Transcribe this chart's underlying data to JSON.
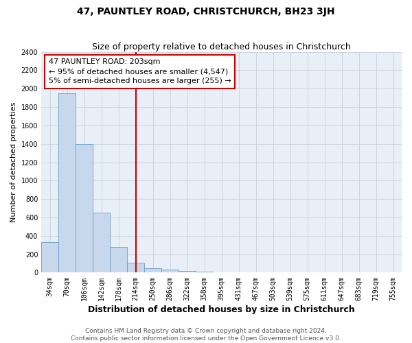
{
  "title": "47, PAUNTLEY ROAD, CHRISTCHURCH, BH23 3JH",
  "subtitle": "Size of property relative to detached houses in Christchurch",
  "xlabel": "Distribution of detached houses by size in Christchurch",
  "ylabel": "Number of detached properties",
  "bin_labels": [
    "34sqm",
    "70sqm",
    "106sqm",
    "142sqm",
    "178sqm",
    "214sqm",
    "250sqm",
    "286sqm",
    "322sqm",
    "358sqm",
    "395sqm",
    "431sqm",
    "467sqm",
    "503sqm",
    "539sqm",
    "575sqm",
    "611sqm",
    "647sqm",
    "683sqm",
    "719sqm",
    "755sqm"
  ],
  "bar_heights": [
    330,
    1950,
    1400,
    650,
    280,
    110,
    45,
    30,
    20,
    10,
    0,
    0,
    0,
    0,
    0,
    0,
    0,
    0,
    0,
    0,
    0
  ],
  "bar_color": "#c8d8ec",
  "bar_edge_color": "#6a9fc8",
  "vline_x": 5,
  "vline_color": "#cc0000",
  "vline_lw": 1.5,
  "annotation_text": "47 PAUNTLEY ROAD: 203sqm\n← 95% of detached houses are smaller (4,547)\n5% of semi-detached houses are larger (255) →",
  "annotation_box_color": "white",
  "annotation_box_edge": "#cc0000",
  "ylim": [
    0,
    2400
  ],
  "yticks": [
    0,
    200,
    400,
    600,
    800,
    1000,
    1200,
    1400,
    1600,
    1800,
    2000,
    2200,
    2400
  ],
  "footer_line1": "Contains HM Land Registry data © Crown copyright and database right 2024.",
  "footer_line2": "Contains public sector information licensed under the Open Government Licence v3.0.",
  "bg_color": "#e8eff7",
  "grid_color": "#c8d0dc",
  "title_fontsize": 10,
  "subtitle_fontsize": 9,
  "xlabel_fontsize": 9,
  "ylabel_fontsize": 8,
  "tick_fontsize": 7,
  "annot_fontsize": 8,
  "footer_fontsize": 6.5
}
